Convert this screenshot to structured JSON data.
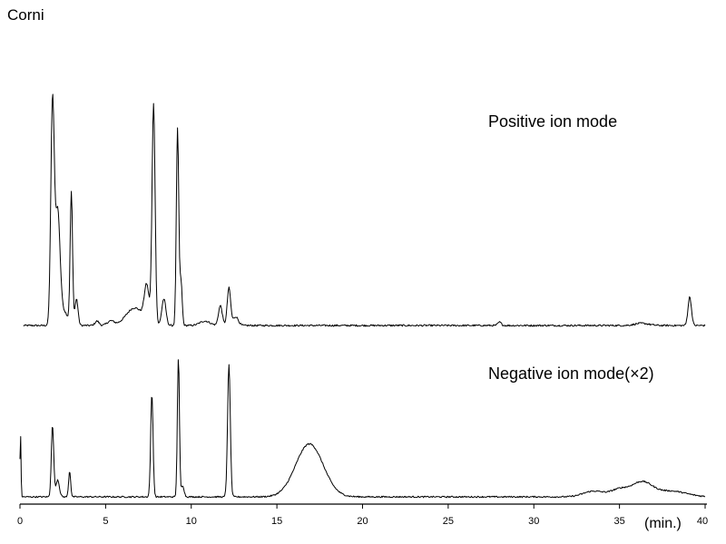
{
  "title": "Corni",
  "chart_data": {
    "type": "line",
    "title": "Corni",
    "xlabel": "(min.)",
    "ylabel": "",
    "xlim": [
      0,
      40
    ],
    "ticks": [
      "0",
      "5",
      "10",
      "15",
      "20",
      "25",
      "30",
      "35",
      "40"
    ],
    "grid": false,
    "series": [
      {
        "name": "Positive ion mode",
        "baseline_noise": 0.004,
        "peaks": [
          {
            "x": 1.9,
            "height": 1.0,
            "width": 0.1
          },
          {
            "x": 2.2,
            "height": 0.52,
            "width": 0.14
          },
          {
            "x": 2.6,
            "height": 0.06,
            "width": 0.2
          },
          {
            "x": 3.0,
            "height": 0.6,
            "width": 0.07
          },
          {
            "x": 3.3,
            "height": 0.12,
            "width": 0.09
          },
          {
            "x": 4.5,
            "height": 0.02,
            "width": 0.12
          },
          {
            "x": 5.3,
            "height": 0.02,
            "width": 0.2
          },
          {
            "x": 6.7,
            "height": 0.08,
            "width": 0.5
          },
          {
            "x": 7.4,
            "height": 0.16,
            "width": 0.14
          },
          {
            "x": 7.8,
            "height": 1.0,
            "width": 0.09
          },
          {
            "x": 8.4,
            "height": 0.12,
            "width": 0.12
          },
          {
            "x": 9.2,
            "height": 0.89,
            "width": 0.07
          },
          {
            "x": 9.4,
            "height": 0.2,
            "width": 0.07
          },
          {
            "x": 10.8,
            "height": 0.02,
            "width": 0.3
          },
          {
            "x": 11.7,
            "height": 0.09,
            "width": 0.11
          },
          {
            "x": 12.2,
            "height": 0.17,
            "width": 0.1
          },
          {
            "x": 12.6,
            "height": 0.04,
            "width": 0.15
          },
          {
            "x": 28.0,
            "height": 0.015,
            "width": 0.1
          },
          {
            "x": 36.3,
            "height": 0.01,
            "width": 0.4
          },
          {
            "x": 39.1,
            "height": 0.13,
            "width": 0.1
          }
        ]
      },
      {
        "name": "Negative ion mode(×2)",
        "baseline_noise": 0.005,
        "peaks": [
          {
            "x": 0.03,
            "height": 0.44,
            "width": 0.03
          },
          {
            "x": 1.9,
            "height": 0.5,
            "width": 0.07
          },
          {
            "x": 2.2,
            "height": 0.12,
            "width": 0.1
          },
          {
            "x": 2.9,
            "height": 0.18,
            "width": 0.06
          },
          {
            "x": 7.7,
            "height": 0.72,
            "width": 0.07
          },
          {
            "x": 9.25,
            "height": 0.97,
            "width": 0.06
          },
          {
            "x": 9.5,
            "height": 0.08,
            "width": 0.08
          },
          {
            "x": 12.2,
            "height": 0.92,
            "width": 0.08
          },
          {
            "x": 16.9,
            "height": 0.37,
            "width": 0.8
          },
          {
            "x": 33.5,
            "height": 0.04,
            "width": 0.6
          },
          {
            "x": 35.0,
            "height": 0.05,
            "width": 0.5
          },
          {
            "x": 36.3,
            "height": 0.1,
            "width": 0.6
          },
          {
            "x": 38.0,
            "height": 0.04,
            "width": 0.9
          }
        ]
      }
    ]
  }
}
